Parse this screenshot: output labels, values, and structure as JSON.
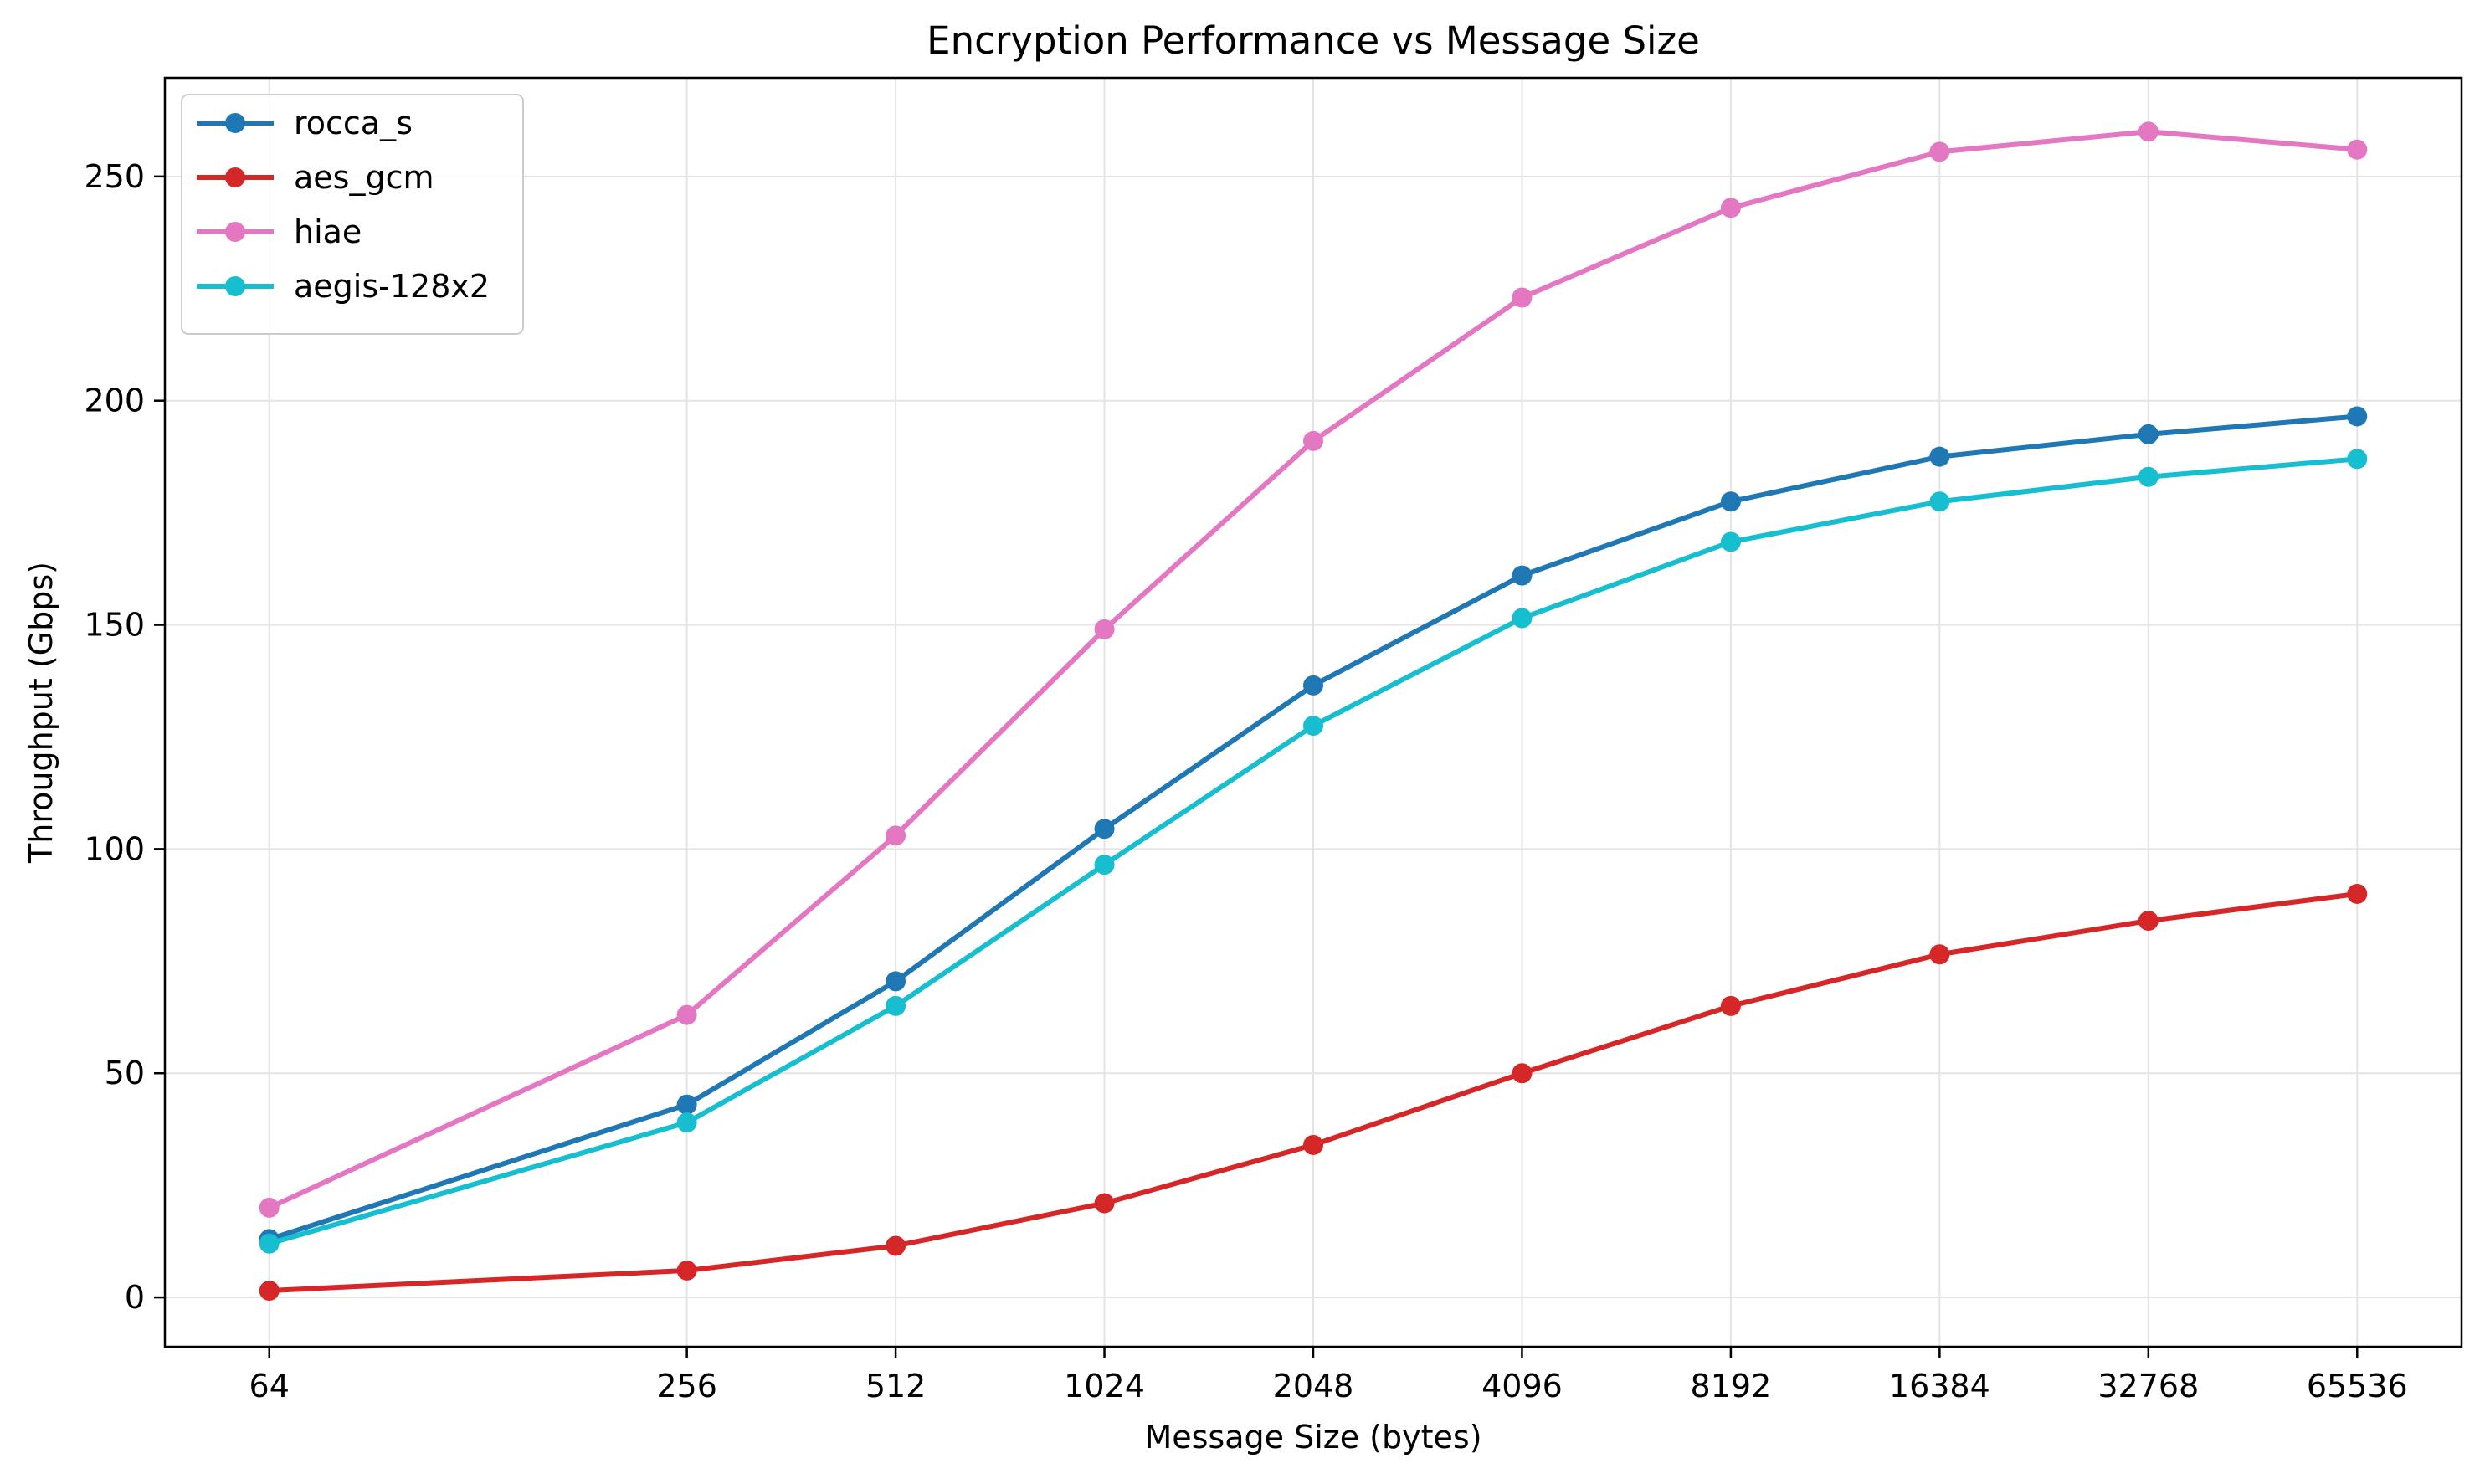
{
  "chart_data": {
    "type": "line",
    "title": "Encryption Performance vs Message Size",
    "xlabel": "Message Size (bytes)",
    "ylabel": "Throughput (Gbps)",
    "x_scale": "log2",
    "x": [
      64,
      256,
      512,
      1024,
      2048,
      4096,
      8192,
      16384,
      32768,
      65536
    ],
    "x_tick_labels": [
      "64",
      "256",
      "512",
      "1024",
      "2048",
      "4096",
      "8192",
      "16384",
      "32768",
      "65536"
    ],
    "y_ticks": [
      0,
      50,
      100,
      150,
      200,
      250
    ],
    "y_tick_labels": [
      "0",
      "50",
      "100",
      "150",
      "200",
      "250"
    ],
    "ylim": [
      -11,
      272
    ],
    "grid": true,
    "legend_position": "top-left",
    "series": [
      {
        "name": "rocca_s",
        "color": "#1f77b4",
        "values": [
          13,
          43,
          70.5,
          104.5,
          136.5,
          161,
          177.5,
          187.5,
          192.5,
          196.5
        ]
      },
      {
        "name": "aes_gcm",
        "color": "#d62728",
        "values": [
          1.5,
          6,
          11.5,
          21,
          34,
          50,
          65,
          76.5,
          84,
          90
        ]
      },
      {
        "name": "hiae",
        "color": "#e377c2",
        "values": [
          20,
          63,
          103,
          149,
          191,
          223,
          243,
          255.5,
          260,
          256
        ]
      },
      {
        "name": "aegis-128x2",
        "color": "#17becf",
        "values": [
          12,
          39,
          65,
          96.5,
          127.5,
          151.5,
          168.5,
          177.5,
          183,
          187
        ]
      }
    ]
  }
}
